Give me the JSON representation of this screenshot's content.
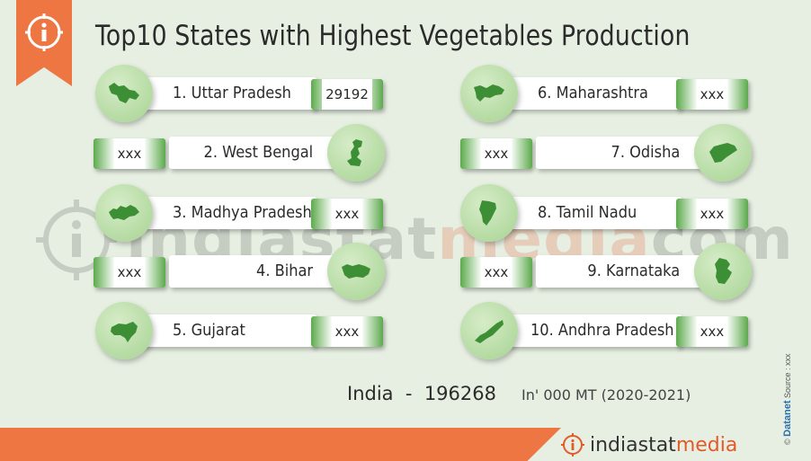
{
  "title": "Top10 States with Highest Vegetables Production",
  "watermark": {
    "part1": "indiastat",
    "part2": "media",
    "part3": "com"
  },
  "states": [
    {
      "label": "1. Uttar Pradesh",
      "value": "29192"
    },
    {
      "label": "2. West Bengal",
      "value": "xxx"
    },
    {
      "label": "3. Madhya Pradesh",
      "value": "xxx"
    },
    {
      "label": "4. Bihar",
      "value": "xxx"
    },
    {
      "label": "5. Gujarat",
      "value": "xxx"
    },
    {
      "label": "6. Maharashtra",
      "value": "xxx"
    },
    {
      "label": "7. Odisha",
      "value": "xxx"
    },
    {
      "label": "8. Tamil Nadu",
      "value": "xxx"
    },
    {
      "label": "9. Karnataka",
      "value": "xxx"
    },
    {
      "label": "10. Andhra Pradesh",
      "value": "xxx"
    }
  ],
  "total": {
    "label": "India  -  196268",
    "unit": "In' 000 MT (2020-2021)"
  },
  "source": {
    "brand": "Datanet",
    "text": "Source : xxx",
    "copyright": "©"
  },
  "footer": {
    "logo_part1": "indiastat",
    "logo_part2": "media"
  },
  "colors": {
    "accent": "#ee7643",
    "green": "#5caa4c",
    "circle": "#b9dda7",
    "background": "#e6efe2"
  }
}
